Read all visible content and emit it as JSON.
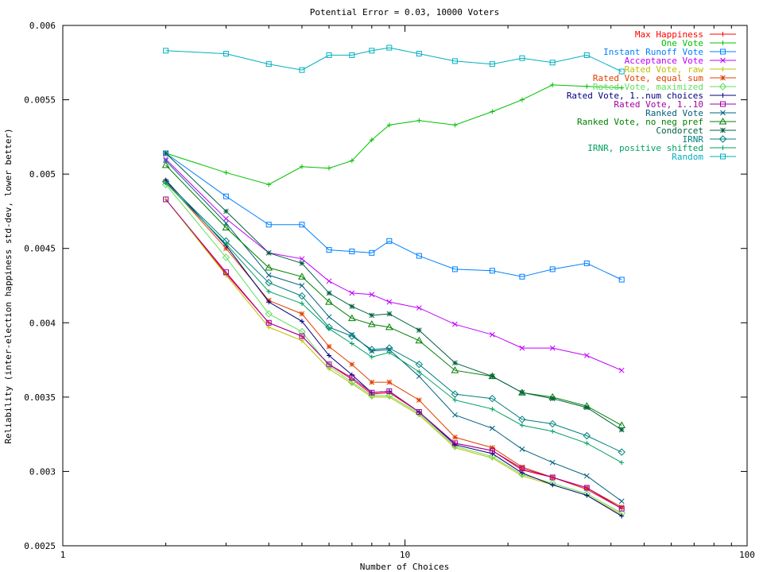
{
  "chart_data": {
    "type": "line",
    "title": "Potential Error = 0.03, 10000 Voters",
    "xlabel": "Number of Choices",
    "ylabel": "Reliability (inter-election happiness std-dev, lower better)",
    "x_scale": "log",
    "xlim": [
      1,
      100
    ],
    "ylim": [
      0.0025,
      0.006
    ],
    "x_ticks": [
      1,
      10,
      100
    ],
    "x_tick_labels": [
      "1",
      "10",
      "100"
    ],
    "y_ticks": [
      0.0025,
      0.003,
      0.0035,
      0.004,
      0.0045,
      0.005,
      0.0055,
      0.006
    ],
    "y_tick_labels": [
      "0.0025",
      "0.003",
      "0.0035",
      "0.004",
      "0.0045",
      "0.005",
      "0.0055",
      "0.006"
    ],
    "legend_position": "top-right",
    "x": [
      2,
      3,
      4,
      5,
      6,
      7,
      8,
      9,
      11,
      14,
      18,
      22,
      27,
      34,
      43
    ],
    "series": [
      {
        "name": "Max Happiness",
        "color": "#ff0000",
        "marker": "plus",
        "values": [
          0.00483,
          0.00433,
          0.004,
          0.00391,
          0.00372,
          0.00362,
          0.00352,
          0.00353,
          0.0034,
          0.00319,
          0.00314,
          0.00301,
          0.00296,
          0.00288,
          0.00275
        ]
      },
      {
        "name": "One Vote",
        "color": "#00c000",
        "marker": "plus",
        "values": [
          0.00514,
          0.00501,
          0.00493,
          0.00505,
          0.00504,
          0.00509,
          0.00523,
          0.00533,
          0.00536,
          0.00533,
          0.00542,
          0.0055,
          0.0056,
          0.00559,
          0.00558
        ]
      },
      {
        "name": "Instant Runoff Vote",
        "color": "#0080ff",
        "marker": "square",
        "values": [
          0.00514,
          0.00485,
          0.00466,
          0.00466,
          0.00449,
          0.00448,
          0.00447,
          0.00455,
          0.00445,
          0.00436,
          0.00435,
          0.00431,
          0.00436,
          0.0044,
          0.00429
        ]
      },
      {
        "name": "Acceptance Vote",
        "color": "#c000ff",
        "marker": "cross",
        "values": [
          0.0051,
          0.0047,
          0.00447,
          0.00443,
          0.00428,
          0.0042,
          0.00419,
          0.00414,
          0.0041,
          0.00399,
          0.00392,
          0.00383,
          0.00383,
          0.00378,
          0.00368
        ]
      },
      {
        "name": "Rated Vote, raw",
        "color": "#c0c000",
        "marker": "plus",
        "values": [
          0.00483,
          0.00432,
          0.00397,
          0.00388,
          0.00369,
          0.00359,
          0.0035,
          0.0035,
          0.00338,
          0.00316,
          0.00309,
          0.00297,
          0.00291,
          0.00284,
          0.00271
        ]
      },
      {
        "name": "Rated Vote, equal sum",
        "color": "#e04000",
        "marker": "star",
        "values": [
          0.00495,
          0.0045,
          0.00415,
          0.00406,
          0.00384,
          0.00372,
          0.0036,
          0.0036,
          0.00348,
          0.00323,
          0.00316,
          0.00303,
          0.00296,
          0.00289,
          0.00276
        ]
      },
      {
        "name": "Rated Vote, maximized",
        "color": "#60e060",
        "marker": "diamond",
        "values": [
          0.00493,
          0.00444,
          0.00406,
          0.00394,
          0.00371,
          0.0036,
          0.00351,
          0.00351,
          0.00339,
          0.00317,
          0.0031,
          0.00298,
          0.00292,
          0.00285,
          0.00272
        ]
      },
      {
        "name": "Rated Vote, 1..num choices",
        "color": "#000080",
        "marker": "plus",
        "values": [
          0.00496,
          0.00452,
          0.00414,
          0.00401,
          0.00378,
          0.00365,
          0.00353,
          0.00354,
          0.0034,
          0.00318,
          0.00312,
          0.00299,
          0.00291,
          0.00284,
          0.0027
        ]
      },
      {
        "name": "Rated Vote, 1..10",
        "color": "#a000a0",
        "marker": "square",
        "values": [
          0.00483,
          0.00434,
          0.004,
          0.00391,
          0.00372,
          0.00363,
          0.00353,
          0.00354,
          0.0034,
          0.00319,
          0.00314,
          0.00302,
          0.00296,
          0.00289,
          0.00275
        ]
      },
      {
        "name": "Ranked Vote",
        "color": "#006080",
        "marker": "cross",
        "values": [
          0.00509,
          0.00467,
          0.00432,
          0.00425,
          0.00404,
          0.00392,
          0.00381,
          0.00382,
          0.00364,
          0.00338,
          0.00329,
          0.00315,
          0.00306,
          0.00297,
          0.0028
        ]
      },
      {
        "name": "Ranked Vote, no neg pref",
        "color": "#008000",
        "marker": "triangle",
        "values": [
          0.00506,
          0.00464,
          0.00437,
          0.00431,
          0.00414,
          0.00403,
          0.00399,
          0.00397,
          0.00388,
          0.00368,
          0.00364,
          0.00353,
          0.0035,
          0.00344,
          0.00331
        ]
      },
      {
        "name": "Condorcet",
        "color": "#006040",
        "marker": "star",
        "values": [
          0.00514,
          0.00475,
          0.00447,
          0.0044,
          0.0042,
          0.00411,
          0.00405,
          0.00406,
          0.00395,
          0.00373,
          0.00364,
          0.00353,
          0.00349,
          0.00343,
          0.00328
        ]
      },
      {
        "name": "IRNR",
        "color": "#008080",
        "marker": "diamond",
        "values": [
          0.00495,
          0.00455,
          0.00427,
          0.00418,
          0.00397,
          0.00391,
          0.00382,
          0.00383,
          0.00372,
          0.00352,
          0.00349,
          0.00335,
          0.00332,
          0.00324,
          0.00313
        ]
      },
      {
        "name": "IRNR, positive shifted",
        "color": "#00a060",
        "marker": "plus",
        "values": [
          0.00494,
          0.00453,
          0.00421,
          0.00413,
          0.00396,
          0.00386,
          0.00377,
          0.0038,
          0.00367,
          0.00348,
          0.00342,
          0.00331,
          0.00327,
          0.00319,
          0.00306
        ]
      },
      {
        "name": "Random",
        "color": "#00b0c0",
        "marker": "square",
        "values": [
          0.00583,
          0.00581,
          0.00574,
          0.0057,
          0.0058,
          0.0058,
          0.00583,
          0.00585,
          0.00581,
          0.00576,
          0.00574,
          0.00578,
          0.00575,
          0.0058,
          0.00569
        ]
      }
    ]
  }
}
